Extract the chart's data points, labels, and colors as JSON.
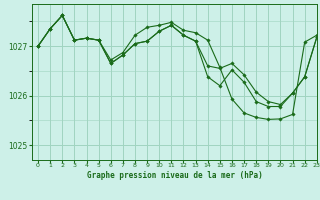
{
  "title": "Graphe pression niveau de la mer (hPa)",
  "background_color": "#cdf0e8",
  "plot_bg_color": "#cdf0e8",
  "grid_color": "#a0d4c0",
  "line_color": "#1a6b1a",
  "marker_color": "#1a6b1a",
  "xlim": [
    -0.5,
    23
  ],
  "ylim": [
    1024.7,
    1027.85
  ],
  "yticks": [
    1025,
    1026,
    1027
  ],
  "xticks": [
    0,
    1,
    2,
    3,
    4,
    5,
    6,
    7,
    8,
    9,
    10,
    11,
    12,
    13,
    14,
    15,
    16,
    17,
    18,
    19,
    20,
    21,
    22,
    23
  ],
  "series1_x": [
    0,
    1,
    2,
    3,
    4,
    5,
    6,
    7,
    8,
    9,
    10,
    11,
    12,
    13,
    14,
    15,
    16,
    17,
    18,
    19,
    20,
    21,
    22,
    23
  ],
  "series1": [
    1027.0,
    1027.35,
    1027.62,
    1027.12,
    1027.16,
    1027.12,
    1026.72,
    1026.87,
    1027.22,
    1027.38,
    1027.42,
    1027.48,
    1027.32,
    1027.27,
    1027.12,
    1026.57,
    1025.93,
    1025.65,
    1025.56,
    1025.52,
    1025.53,
    1025.62,
    1027.08,
    1027.22
  ],
  "series2_x": [
    0,
    1,
    2,
    3,
    4,
    5,
    6,
    7,
    8,
    9,
    10,
    11,
    12,
    13,
    14,
    15,
    16,
    17,
    18,
    19,
    20,
    21,
    22,
    23
  ],
  "series2": [
    1027.0,
    1027.35,
    1027.62,
    1027.12,
    1027.16,
    1027.12,
    1026.65,
    1026.82,
    1027.05,
    1027.1,
    1027.3,
    1027.42,
    1027.22,
    1027.1,
    1026.38,
    1026.2,
    1026.52,
    1026.27,
    1025.88,
    1025.78,
    1025.78,
    1026.05,
    1026.38,
    1027.18
  ],
  "series3_x": [
    0,
    1,
    2,
    3,
    4,
    5,
    6,
    7,
    8,
    9,
    10,
    11,
    12,
    13,
    14,
    15,
    16,
    17,
    18,
    19,
    20,
    21,
    22,
    23
  ],
  "series3": [
    1027.0,
    1027.35,
    1027.62,
    1027.12,
    1027.16,
    1027.12,
    1026.65,
    1026.82,
    1027.05,
    1027.1,
    1027.3,
    1027.42,
    1027.22,
    1027.1,
    1026.6,
    1026.55,
    1026.65,
    1026.42,
    1026.07,
    1025.88,
    1025.82,
    1026.05,
    1026.38,
    1027.18
  ]
}
